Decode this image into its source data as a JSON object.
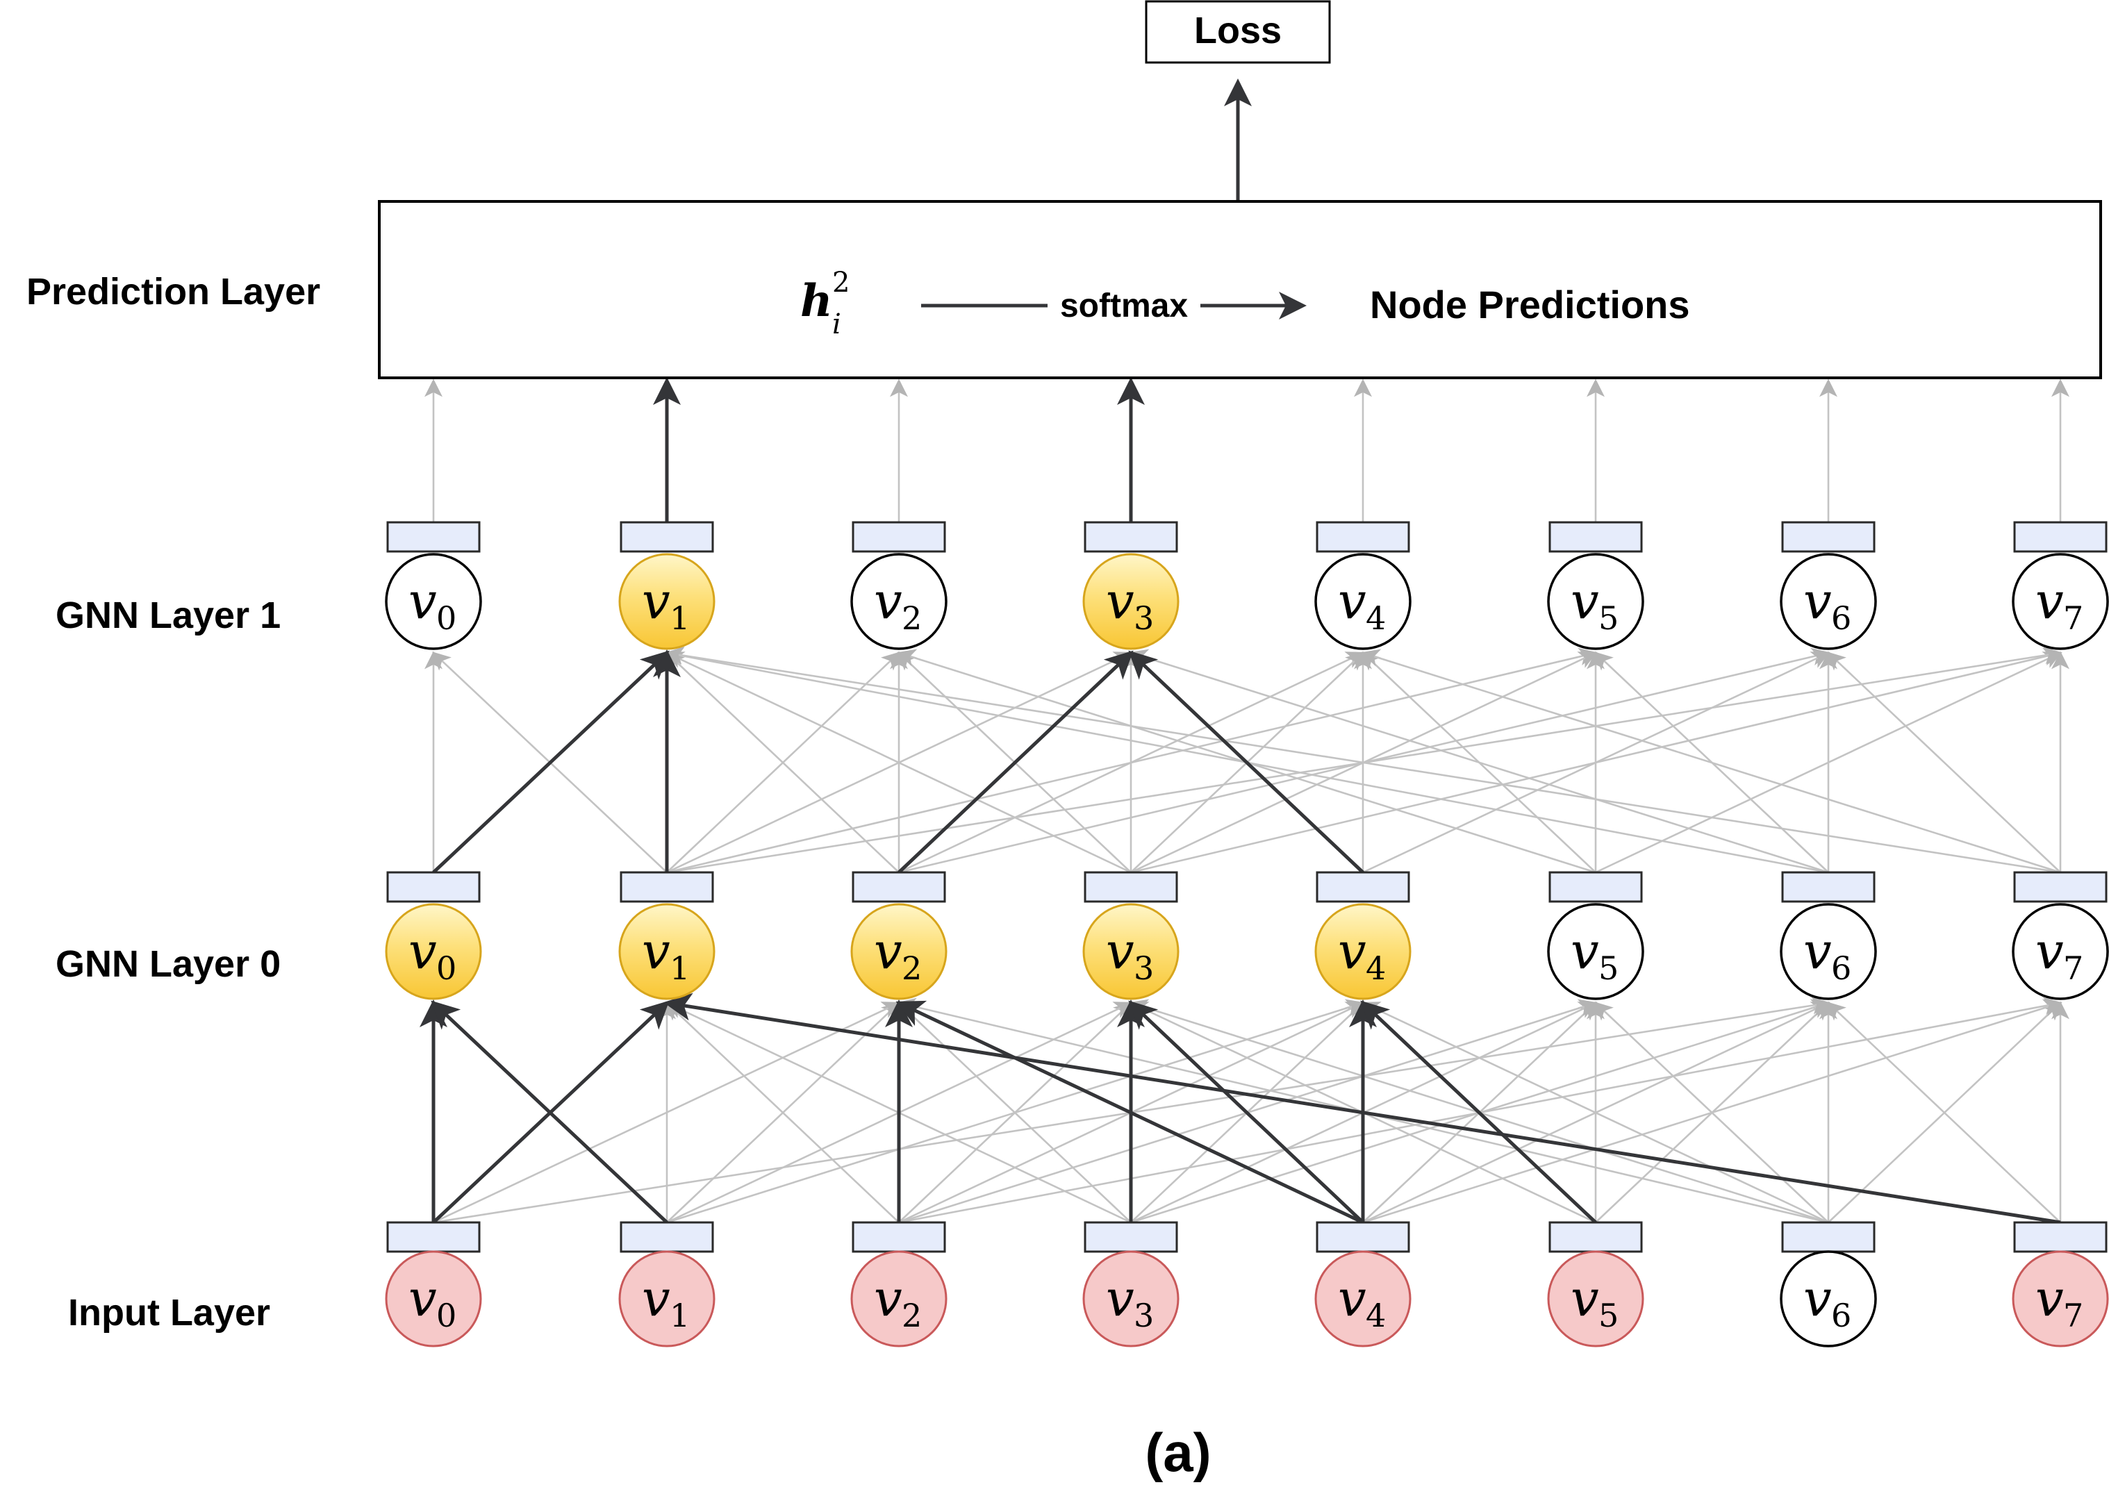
{
  "loss_label": "Loss",
  "prediction_box": {
    "h_symbol": "h",
    "h_superscript": "2",
    "h_subscript": "i",
    "arrow_label": "softmax",
    "output_label": "Node Predictions"
  },
  "layers": [
    {
      "id": "input",
      "label": "Input Layer",
      "nodes": [
        {
          "symbol": "v",
          "index": "0",
          "state": "red"
        },
        {
          "symbol": "v",
          "index": "1",
          "state": "red"
        },
        {
          "symbol": "v",
          "index": "2",
          "state": "red"
        },
        {
          "symbol": "v",
          "index": "3",
          "state": "red"
        },
        {
          "symbol": "v",
          "index": "4",
          "state": "red"
        },
        {
          "symbol": "v",
          "index": "5",
          "state": "red"
        },
        {
          "symbol": "v",
          "index": "6",
          "state": "white"
        },
        {
          "symbol": "v",
          "index": "7",
          "state": "red"
        }
      ]
    },
    {
      "id": "gnn0",
      "label": "GNN Layer 0",
      "nodes": [
        {
          "symbol": "v",
          "index": "0",
          "state": "yellow"
        },
        {
          "symbol": "v",
          "index": "1",
          "state": "yellow"
        },
        {
          "symbol": "v",
          "index": "2",
          "state": "yellow"
        },
        {
          "symbol": "v",
          "index": "3",
          "state": "yellow"
        },
        {
          "symbol": "v",
          "index": "4",
          "state": "yellow"
        },
        {
          "symbol": "v",
          "index": "5",
          "state": "white"
        },
        {
          "symbol": "v",
          "index": "6",
          "state": "white"
        },
        {
          "symbol": "v",
          "index": "7",
          "state": "white"
        }
      ]
    },
    {
      "id": "gnn1",
      "label": "GNN Layer 1",
      "nodes": [
        {
          "symbol": "v",
          "index": "0",
          "state": "white"
        },
        {
          "symbol": "v",
          "index": "1",
          "state": "yellow"
        },
        {
          "symbol": "v",
          "index": "2",
          "state": "white"
        },
        {
          "symbol": "v",
          "index": "3",
          "state": "yellow"
        },
        {
          "symbol": "v",
          "index": "4",
          "state": "white"
        },
        {
          "symbol": "v",
          "index": "5",
          "state": "white"
        },
        {
          "symbol": "v",
          "index": "6",
          "state": "white"
        },
        {
          "symbol": "v",
          "index": "7",
          "state": "white"
        }
      ]
    }
  ],
  "prediction_layer_label": "Prediction Layer",
  "caption": "(a)",
  "edges_input_to_gnn0": {
    "highlighted": [
      [
        0,
        0
      ],
      [
        1,
        0
      ],
      [
        0,
        1
      ],
      [
        7,
        1
      ],
      [
        2,
        2
      ],
      [
        4,
        2
      ],
      [
        3,
        3
      ],
      [
        4,
        3
      ],
      [
        4,
        4
      ],
      [
        5,
        4
      ]
    ],
    "faded": [
      [
        1,
        1
      ],
      [
        2,
        1
      ],
      [
        3,
        1
      ],
      [
        1,
        0
      ],
      [
        3,
        2
      ],
      [
        1,
        2
      ],
      [
        6,
        2
      ],
      [
        0,
        2
      ],
      [
        2,
        3
      ],
      [
        5,
        3
      ],
      [
        6,
        3
      ],
      [
        1,
        3
      ],
      [
        3,
        4
      ],
      [
        6,
        4
      ],
      [
        2,
        4
      ],
      [
        1,
        4
      ],
      [
        5,
        5
      ],
      [
        4,
        5
      ],
      [
        6,
        5
      ],
      [
        3,
        5
      ],
      [
        2,
        5
      ],
      [
        6,
        6
      ],
      [
        5,
        6
      ],
      [
        7,
        6
      ],
      [
        4,
        6
      ],
      [
        3,
        6
      ],
      [
        0,
        6
      ],
      [
        7,
        7
      ],
      [
        6,
        7
      ],
      [
        4,
        7
      ],
      [
        2,
        7
      ]
    ]
  },
  "edges_gnn0_to_gnn1": {
    "highlighted": [
      [
        0,
        1
      ],
      [
        1,
        1
      ],
      [
        2,
        3
      ],
      [
        4,
        3
      ]
    ],
    "faded": [
      [
        0,
        0
      ],
      [
        1,
        0
      ],
      [
        2,
        1
      ],
      [
        3,
        1
      ],
      [
        6,
        1
      ],
      [
        7,
        1
      ],
      [
        2,
        2
      ],
      [
        1,
        2
      ],
      [
        3,
        2
      ],
      [
        5,
        2
      ],
      [
        3,
        3
      ],
      [
        1,
        3
      ],
      [
        6,
        3
      ],
      [
        4,
        4
      ],
      [
        2,
        4
      ],
      [
        3,
        4
      ],
      [
        5,
        4
      ],
      [
        7,
        4
      ],
      [
        5,
        5
      ],
      [
        1,
        5
      ],
      [
        3,
        5
      ],
      [
        6,
        5
      ],
      [
        6,
        6
      ],
      [
        2,
        6
      ],
      [
        4,
        6
      ],
      [
        7,
        6
      ],
      [
        7,
        7
      ],
      [
        3,
        7
      ],
      [
        5,
        7
      ],
      [
        1,
        7
      ]
    ]
  },
  "edges_gnn1_to_prediction": {
    "highlighted": [
      1,
      3
    ],
    "faded": [
      0,
      2,
      4,
      5,
      6,
      7
    ]
  },
  "colors": {
    "red_fill": "#f6c9c9",
    "red_stroke": "#c9595a",
    "yellow_fill": "#fdd85e",
    "yellow_stroke": "#d7a51c",
    "white_fill": "#ffffff",
    "white_stroke": "#000000",
    "highlight_edge": "#343538",
    "faded_edge": "#c3c3c3",
    "embedding_fill": "#e6ecfb",
    "embedding_stroke": "#2a2a2a"
  }
}
